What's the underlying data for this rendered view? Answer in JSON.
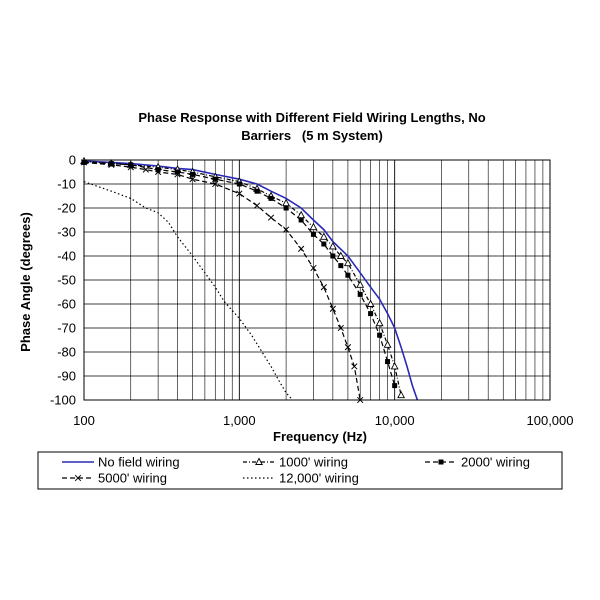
{
  "chart_data": {
    "type": "line",
    "title_line1": "Phase Response with Different Field Wiring Lengths, No",
    "title_line2": "Barriers   (5 m System)",
    "xlabel": "Frequency (Hz)",
    "ylabel": "Phase Angle (degrees)",
    "x_scale": "log",
    "xlim": [
      100,
      100000
    ],
    "ylim": [
      -100,
      0
    ],
    "x_ticks": [
      100,
      1000,
      10000,
      100000
    ],
    "x_tick_labels": [
      "100",
      "1,000",
      "10,000",
      "100,000"
    ],
    "y_ticks": [
      0,
      -10,
      -20,
      -30,
      -40,
      -50,
      -60,
      -70,
      -80,
      -90,
      -100
    ],
    "y_tick_labels": [
      "0",
      "-10",
      "-20",
      "-30",
      "-40",
      "-50",
      "-60",
      "-70",
      "-80",
      "-90",
      "-100"
    ],
    "grid": true,
    "legend_position": "bottom",
    "series": [
      {
        "name": "No field wiring",
        "color": "#2a2ab8",
        "dash": "solid",
        "marker": "none",
        "points": [
          [
            100,
            -0.5
          ],
          [
            150,
            -1
          ],
          [
            200,
            -1.5
          ],
          [
            300,
            -2.5
          ],
          [
            400,
            -3.5
          ],
          [
            500,
            -4
          ],
          [
            700,
            -6
          ],
          [
            1000,
            -8
          ],
          [
            1300,
            -10
          ],
          [
            1600,
            -13
          ],
          [
            2000,
            -16
          ],
          [
            2500,
            -20
          ],
          [
            3000,
            -25
          ],
          [
            3500,
            -29
          ],
          [
            4000,
            -34
          ],
          [
            5000,
            -40
          ],
          [
            6000,
            -47
          ],
          [
            7000,
            -53
          ],
          [
            8000,
            -58
          ],
          [
            9000,
            -64
          ],
          [
            10000,
            -70
          ],
          [
            11000,
            -78
          ],
          [
            12000,
            -86
          ],
          [
            13000,
            -94
          ],
          [
            14000,
            -100
          ]
        ]
      },
      {
        "name": "1000' wiring",
        "color": "#000000",
        "dash": "dotdash",
        "marker": "triangle",
        "points": [
          [
            100,
            -0.5
          ],
          [
            150,
            -1.5
          ],
          [
            200,
            -2
          ],
          [
            300,
            -3
          ],
          [
            400,
            -4
          ],
          [
            500,
            -5
          ],
          [
            700,
            -7
          ],
          [
            1000,
            -9
          ],
          [
            1300,
            -12
          ],
          [
            1600,
            -15
          ],
          [
            2000,
            -18
          ],
          [
            2500,
            -23
          ],
          [
            3000,
            -28
          ],
          [
            3500,
            -32
          ],
          [
            4000,
            -36
          ],
          [
            4500,
            -40
          ],
          [
            5000,
            -43
          ],
          [
            6000,
            -52
          ],
          [
            7000,
            -60
          ],
          [
            8000,
            -68
          ],
          [
            9000,
            -77
          ],
          [
            10000,
            -86
          ],
          [
            11000,
            -98
          ]
        ]
      },
      {
        "name": "2000' wiring",
        "color": "#000000",
        "dash": "dashed",
        "marker": "square",
        "points": [
          [
            100,
            -1
          ],
          [
            150,
            -1.5
          ],
          [
            200,
            -2
          ],
          [
            300,
            -4
          ],
          [
            400,
            -5
          ],
          [
            500,
            -6
          ],
          [
            700,
            -8
          ],
          [
            1000,
            -10
          ],
          [
            1300,
            -13
          ],
          [
            1600,
            -16
          ],
          [
            2000,
            -20
          ],
          [
            2500,
            -25
          ],
          [
            3000,
            -31
          ],
          [
            3500,
            -35
          ],
          [
            4000,
            -40
          ],
          [
            4500,
            -44
          ],
          [
            5000,
            -48
          ],
          [
            6000,
            -56
          ],
          [
            7000,
            -64
          ],
          [
            8000,
            -73
          ],
          [
            9000,
            -84
          ],
          [
            10000,
            -94
          ]
        ]
      },
      {
        "name": "5000' wiring",
        "color": "#000000",
        "dash": "dashed",
        "marker": "x",
        "points": [
          [
            100,
            -1
          ],
          [
            150,
            -2
          ],
          [
            200,
            -3
          ],
          [
            250,
            -4
          ],
          [
            300,
            -5
          ],
          [
            400,
            -6
          ],
          [
            500,
            -8
          ],
          [
            700,
            -10
          ],
          [
            1000,
            -14
          ],
          [
            1300,
            -19
          ],
          [
            1600,
            -24
          ],
          [
            2000,
            -29
          ],
          [
            2500,
            -37
          ],
          [
            3000,
            -45
          ],
          [
            3500,
            -53
          ],
          [
            4000,
            -62
          ],
          [
            4500,
            -70
          ],
          [
            5000,
            -78
          ],
          [
            5500,
            -86
          ],
          [
            6000,
            -100
          ]
        ]
      },
      {
        "name": "12,000' wiring",
        "color": "#000000",
        "dash": "dotted",
        "marker": "none",
        "points": [
          [
            100,
            -9
          ],
          [
            150,
            -13
          ],
          [
            200,
            -16
          ],
          [
            250,
            -20
          ],
          [
            300,
            -22
          ],
          [
            350,
            -26
          ],
          [
            400,
            -32
          ],
          [
            500,
            -40
          ],
          [
            600,
            -47
          ],
          [
            700,
            -53
          ],
          [
            800,
            -59
          ],
          [
            1000,
            -66
          ],
          [
            1200,
            -73
          ],
          [
            1400,
            -80
          ],
          [
            1600,
            -86
          ],
          [
            1800,
            -92
          ],
          [
            2000,
            -97
          ],
          [
            2200,
            -100
          ]
        ]
      }
    ]
  }
}
